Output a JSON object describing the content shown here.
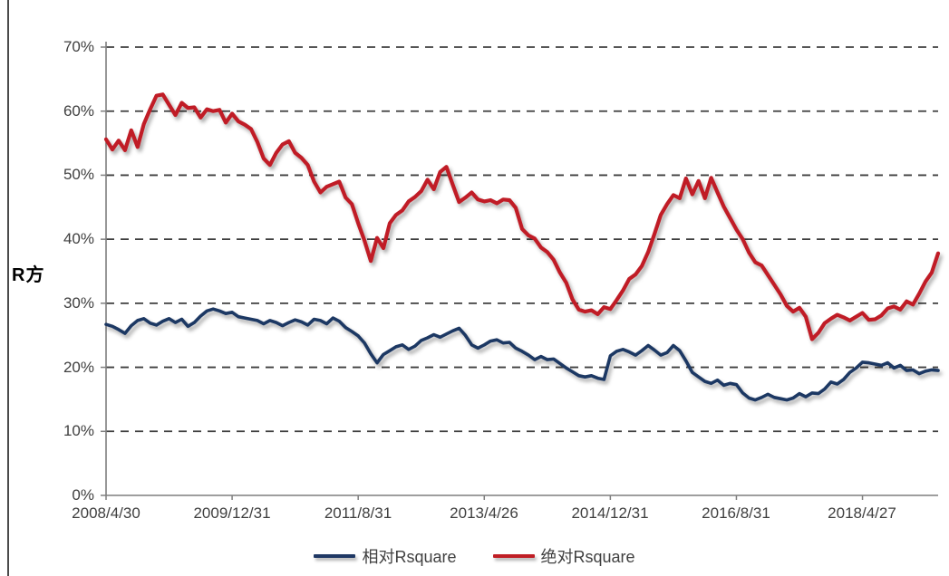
{
  "colors": {
    "gridline": "#3f3f3f",
    "axis": "#7f7f7f",
    "tick_text": "#3f3f3f",
    "frame_line": "#4a4a4a",
    "background": "#ffffff"
  },
  "chart_data": {
    "type": "line",
    "title": "",
    "ylabel": "R方",
    "values_unit": "percent",
    "y_axis": {
      "tick_labels": [
        "0%",
        "10%",
        "20%",
        "30%",
        "40%",
        "50%",
        "60%",
        "70%"
      ],
      "ylim_percent": [
        0,
        70
      ],
      "gridlines": "dashed-horizontal"
    },
    "x_axis": {
      "tick_labels": [
        "2008/4/30",
        "2009/12/31",
        "2011/8/31",
        "2013/4/26",
        "2014/12/31",
        "2016/8/31",
        "2018/4/27"
      ],
      "tick_indices": [
        0,
        20,
        40,
        60,
        80,
        100,
        120
      ],
      "start": "2008/4/30",
      "frequency": "monthly",
      "n_points": 133
    },
    "legend": {
      "position": "bottom-center"
    },
    "series": [
      {
        "name": "相对Rsquare",
        "color": "#1F3864",
        "stroke_width": 3.6,
        "values": [
          26.7,
          26.4,
          25.9,
          25.3,
          26.5,
          27.3,
          27.6,
          26.9,
          26.6,
          27.2,
          27.6,
          27.0,
          27.5,
          26.4,
          27.0,
          28.0,
          28.8,
          29.1,
          28.8,
          28.4,
          28.6,
          27.9,
          27.7,
          27.5,
          27.3,
          26.8,
          27.3,
          27.0,
          26.5,
          27.0,
          27.4,
          27.1,
          26.6,
          27.5,
          27.3,
          26.8,
          27.7,
          27.2,
          26.2,
          25.6,
          24.9,
          23.8,
          22.1,
          20.7,
          22.0,
          22.6,
          23.2,
          23.5,
          22.8,
          23.3,
          24.2,
          24.6,
          25.1,
          24.7,
          25.2,
          25.7,
          26.1,
          25.0,
          23.5,
          23.0,
          23.5,
          24.1,
          24.3,
          23.8,
          23.9,
          23.0,
          22.5,
          21.9,
          21.2,
          21.7,
          21.2,
          21.3,
          20.6,
          19.9,
          19.3,
          18.7,
          18.5,
          18.7,
          18.3,
          18.1,
          21.8,
          22.5,
          22.8,
          22.4,
          21.9,
          22.6,
          23.4,
          22.7,
          21.9,
          22.3,
          23.4,
          22.6,
          21.0,
          19.2,
          18.5,
          17.8,
          17.5,
          18.0,
          17.2,
          17.5,
          17.3,
          16.0,
          15.2,
          14.9,
          15.3,
          15.8,
          15.3,
          15.1,
          14.9,
          15.2,
          15.9,
          15.4,
          16.0,
          15.9,
          16.6,
          17.7,
          17.4,
          18.1,
          19.2,
          19.9,
          20.8,
          20.7,
          20.5,
          20.3,
          20.7,
          19.9,
          20.3,
          19.5,
          19.6,
          19.0,
          19.4,
          19.6,
          19.5
        ]
      },
      {
        "name": "绝对Rsquare",
        "color": "#C01E25",
        "stroke_width": 4.2,
        "values": [
          55.6,
          54.0,
          55.4,
          53.9,
          57.0,
          54.4,
          58.0,
          60.3,
          62.4,
          62.6,
          61.0,
          59.4,
          61.3,
          60.5,
          60.6,
          59.0,
          60.3,
          60.0,
          60.2,
          58.2,
          59.6,
          58.4,
          57.9,
          57.2,
          55.2,
          52.6,
          51.6,
          53.5,
          54.8,
          55.3,
          53.5,
          52.7,
          51.6,
          49.0,
          47.3,
          48.2,
          48.6,
          49.0,
          46.5,
          45.5,
          42.5,
          39.8,
          36.6,
          40.2,
          38.6,
          42.5,
          43.8,
          44.5,
          45.9,
          46.6,
          47.5,
          49.3,
          47.8,
          50.5,
          51.3,
          48.5,
          45.8,
          46.5,
          47.3,
          46.2,
          45.9,
          46.1,
          45.6,
          46.2,
          46.1,
          44.9,
          41.6,
          40.6,
          40.1,
          38.7,
          38.0,
          36.8,
          34.8,
          33.2,
          30.6,
          29.0,
          28.7,
          28.9,
          28.3,
          29.4,
          29.1,
          30.5,
          32.0,
          33.8,
          34.5,
          35.8,
          38.0,
          40.8,
          43.8,
          45.5,
          46.9,
          46.4,
          49.5,
          47.0,
          49.1,
          46.4,
          49.6,
          47.3,
          45.1,
          43.3,
          41.5,
          40.0,
          37.9,
          36.4,
          35.9,
          34.4,
          32.9,
          31.4,
          29.6,
          28.7,
          29.3,
          27.9,
          24.4,
          25.4,
          26.9,
          27.6,
          28.2,
          27.8,
          27.3,
          27.9,
          28.5,
          27.4,
          27.5,
          28.1,
          29.2,
          29.5,
          29.0,
          30.3,
          29.8,
          31.5,
          33.4,
          34.8,
          37.8
        ]
      }
    ]
  }
}
